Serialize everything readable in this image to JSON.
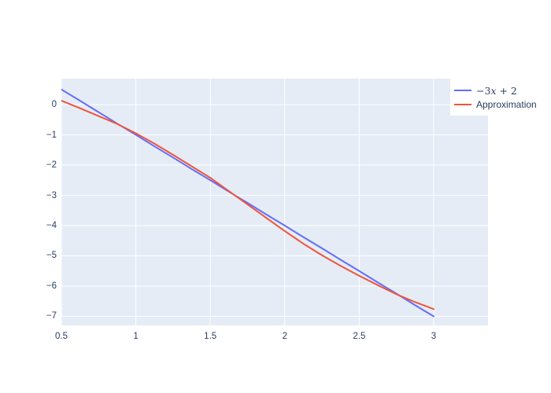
{
  "figure": {
    "background": "#ffffff",
    "plot_bgcolor": "#E5ECF6",
    "grid_color": "#ffffff",
    "text_color": "#2a3f5f"
  },
  "chart_data": {
    "type": "line",
    "title": "",
    "xlabel": "",
    "ylabel": "",
    "grid": true,
    "legend_position": "top-right",
    "x_range": [
      0.5,
      3.365
    ],
    "y_range": [
      -7.3,
      0.86
    ],
    "x_tick_labels": [
      "0.5",
      "1",
      "1.5",
      "2",
      "2.5",
      "3"
    ],
    "x_tick_values": [
      0.5,
      1,
      1.5,
      2,
      2.5,
      3
    ],
    "y_tick_labels": [
      "0",
      "−1",
      "−2",
      "−3",
      "−4",
      "−5",
      "−6",
      "−7"
    ],
    "y_tick_values": [
      0,
      -1,
      -2,
      -3,
      -4,
      -5,
      -6,
      -7
    ],
    "series": [
      {
        "name": "−3x + 2",
        "color": "#636EFA",
        "line_width": 2,
        "x": [
          0.5,
          0.625,
          0.75,
          0.875,
          1.0,
          1.125,
          1.25,
          1.375,
          1.5,
          1.625,
          1.75,
          1.875,
          2.0,
          2.125,
          2.25,
          2.375,
          2.5,
          2.625,
          2.75,
          2.875,
          3.0
        ],
        "y": [
          0.5,
          0.13,
          -0.25,
          -0.63,
          -1.0,
          -1.38,
          -1.75,
          -2.13,
          -2.5,
          -2.88,
          -3.25,
          -3.63,
          -4.0,
          -4.38,
          -4.75,
          -5.13,
          -5.5,
          -5.88,
          -6.25,
          -6.63,
          -7.0
        ]
      },
      {
        "name": "Approximation",
        "color": "#EF553B",
        "line_width": 2,
        "x": [
          0.5,
          0.625,
          0.75,
          0.875,
          1.0,
          1.125,
          1.25,
          1.375,
          1.5,
          1.625,
          1.75,
          1.875,
          2.0,
          2.125,
          2.25,
          2.375,
          2.5,
          2.625,
          2.75,
          2.875,
          3.0
        ],
        "y": [
          0.13,
          -0.12,
          -0.38,
          -0.64,
          -0.95,
          -1.29,
          -1.66,
          -2.04,
          -2.42,
          -2.86,
          -3.3,
          -3.74,
          -4.18,
          -4.6,
          -4.98,
          -5.33,
          -5.66,
          -5.97,
          -6.27,
          -6.53,
          -6.76
        ]
      }
    ]
  },
  "legend": {
    "items": [
      {
        "label": "−3x + 2",
        "math_pre": "−3",
        "math_var": "x",
        "math_post": " + 2",
        "color": "#636EFA"
      },
      {
        "label": "Approximation",
        "color": "#EF553B"
      }
    ]
  }
}
